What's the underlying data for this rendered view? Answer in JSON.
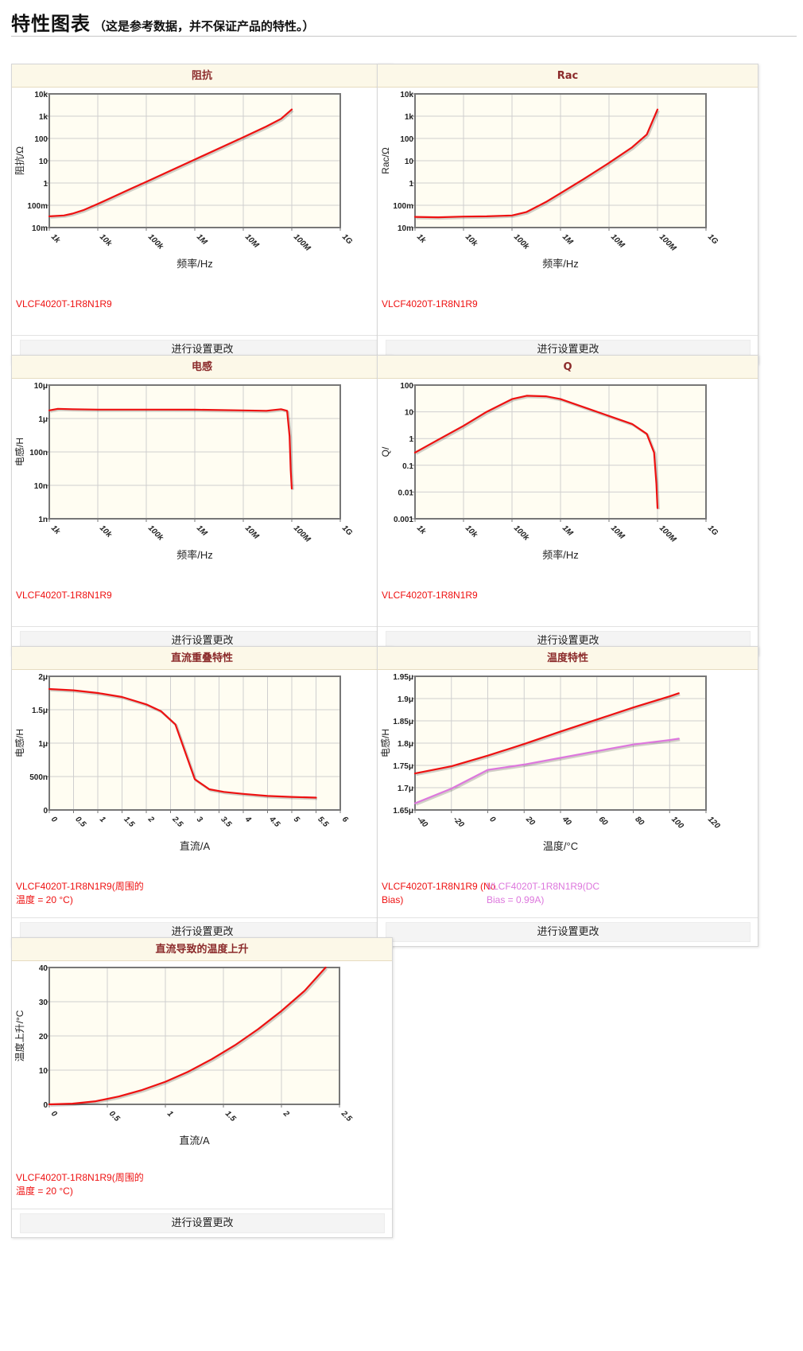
{
  "page": {
    "title": "特性图表",
    "subtitle": "（这是参考数据，并不保证产品的特性。）"
  },
  "charts": [
    {
      "title": "阻抗",
      "button_label": "进行设置更改",
      "legend": [
        {
          "label": "VLCF4020T-1R8N1R9",
          "color": "#ee1111"
        }
      ],
      "chart_data": {
        "type": "line",
        "title": "阻抗",
        "xlabel": "频率/Hz",
        "ylabel": "阻抗/Ω",
        "x_scale": "log",
        "y_scale": "log",
        "xlim": [
          1000,
          1000000000
        ],
        "ylim": [
          0.01,
          10000
        ],
        "x_ticks": [
          {
            "v": 1000,
            "l": "1k"
          },
          {
            "v": 10000,
            "l": "10k"
          },
          {
            "v": 100000,
            "l": "100k"
          },
          {
            "v": 1000000,
            "l": "1M"
          },
          {
            "v": 10000000,
            "l": "10M"
          },
          {
            "v": 100000000,
            "l": "100M"
          },
          {
            "v": 1000000000,
            "l": "1G"
          }
        ],
        "y_ticks": [
          {
            "v": 0.01,
            "l": "10m"
          },
          {
            "v": 0.1,
            "l": "100m"
          },
          {
            "v": 1,
            "l": "1"
          },
          {
            "v": 10,
            "l": "10"
          },
          {
            "v": 100,
            "l": "100"
          },
          {
            "v": 1000,
            "l": "1k"
          },
          {
            "v": 10000,
            "l": "10k"
          }
        ],
        "series": [
          {
            "name": "VLCF4020T-1R8N1R9",
            "color": "#ee1111",
            "x": [
              1000,
              2000,
              3000,
              5000,
              10000,
              20000,
              50000,
              100000,
              300000,
              1000000,
              3000000,
              10000000,
              30000000,
              60000000,
              100000000
            ],
            "y": [
              0.032,
              0.035,
              0.042,
              0.06,
              0.115,
              0.23,
              0.57,
              1.13,
              3.4,
              11.3,
              34,
              113,
              345,
              760,
              2000
            ]
          }
        ]
      }
    },
    {
      "title": "Rac",
      "button_label": "进行设置更改",
      "legend": [
        {
          "label": "VLCF4020T-1R8N1R9",
          "color": "#ee1111"
        }
      ],
      "chart_data": {
        "type": "line",
        "title": "Rac",
        "xlabel": "频率/Hz",
        "ylabel": "Rac/Ω",
        "x_scale": "log",
        "y_scale": "log",
        "xlim": [
          1000,
          1000000000
        ],
        "ylim": [
          0.01,
          10000
        ],
        "x_ticks": [
          {
            "v": 1000,
            "l": "1k"
          },
          {
            "v": 10000,
            "l": "10k"
          },
          {
            "v": 100000,
            "l": "100k"
          },
          {
            "v": 1000000,
            "l": "1M"
          },
          {
            "v": 10000000,
            "l": "10M"
          },
          {
            "v": 100000000,
            "l": "100M"
          },
          {
            "v": 1000000000,
            "l": "1G"
          }
        ],
        "y_ticks": [
          {
            "v": 0.01,
            "l": "10m"
          },
          {
            "v": 0.1,
            "l": "100m"
          },
          {
            "v": 1,
            "l": "1"
          },
          {
            "v": 10,
            "l": "10"
          },
          {
            "v": 100,
            "l": "100"
          },
          {
            "v": 1000,
            "l": "1k"
          },
          {
            "v": 10000,
            "l": "10k"
          }
        ],
        "series": [
          {
            "name": "VLCF4020T-1R8N1R9",
            "color": "#ee1111",
            "x": [
              1000,
              3000,
              10000,
              30000,
              100000,
              200000,
              500000,
              1000000,
              3000000,
              10000000,
              30000000,
              60000000,
              100000000
            ],
            "y": [
              0.03,
              0.029,
              0.031,
              0.032,
              0.035,
              0.05,
              0.14,
              0.35,
              1.5,
              8,
              40,
              150,
              2000
            ]
          }
        ]
      }
    },
    {
      "title": "电感",
      "button_label": "进行设置更改",
      "legend": [
        {
          "label": "VLCF4020T-1R8N1R9",
          "color": "#ee1111"
        }
      ],
      "chart_data": {
        "type": "line",
        "title": "电感",
        "xlabel": "频率/Hz",
        "ylabel": "电感/H",
        "x_scale": "log",
        "y_scale": "log",
        "xlim": [
          1000,
          1000000000
        ],
        "ylim": [
          1e-09,
          1e-05
        ],
        "x_ticks": [
          {
            "v": 1000,
            "l": "1k"
          },
          {
            "v": 10000,
            "l": "10k"
          },
          {
            "v": 100000,
            "l": "100k"
          },
          {
            "v": 1000000,
            "l": "1M"
          },
          {
            "v": 10000000,
            "l": "10M"
          },
          {
            "v": 100000000,
            "l": "100M"
          },
          {
            "v": 1000000000,
            "l": "1G"
          }
        ],
        "y_ticks": [
          {
            "v": 1e-09,
            "l": "1n"
          },
          {
            "v": 1e-08,
            "l": "10n"
          },
          {
            "v": 1e-07,
            "l": "100n"
          },
          {
            "v": 1e-06,
            "l": "1μ"
          },
          {
            "v": 1e-05,
            "l": "10μ"
          }
        ],
        "series": [
          {
            "name": "VLCF4020T-1R8N1R9",
            "color": "#ee1111",
            "x": [
              1000,
              1500,
              3000,
              10000,
              100000,
              1000000,
              10000000,
              30000000,
              60000000,
              80000000,
              90000000,
              95000000,
              100000000
            ],
            "y": [
              1.75e-06,
              1.95e-06,
              1.9e-06,
              1.85e-06,
              1.85e-06,
              1.84e-06,
              1.75e-06,
              1.7e-06,
              1.9e-06,
              1.7e-06,
              3e-07,
              3e-08,
              8e-09
            ]
          }
        ]
      }
    },
    {
      "title": "Q",
      "button_label": "进行设置更改",
      "legend": [
        {
          "label": "VLCF4020T-1R8N1R9",
          "color": "#ee1111"
        }
      ],
      "chart_data": {
        "type": "line",
        "title": "Q",
        "xlabel": "频率/Hz",
        "ylabel": "Q/",
        "x_scale": "log",
        "y_scale": "log",
        "xlim": [
          1000,
          1000000000
        ],
        "ylim": [
          0.001,
          100
        ],
        "x_ticks": [
          {
            "v": 1000,
            "l": "1k"
          },
          {
            "v": 10000,
            "l": "10k"
          },
          {
            "v": 100000,
            "l": "100k"
          },
          {
            "v": 1000000,
            "l": "1M"
          },
          {
            "v": 10000000,
            "l": "10M"
          },
          {
            "v": 100000000,
            "l": "100M"
          },
          {
            "v": 1000000000,
            "l": "1G"
          }
        ],
        "y_ticks": [
          {
            "v": 0.001,
            "l": "0.001"
          },
          {
            "v": 0.01,
            "l": "0.01"
          },
          {
            "v": 0.1,
            "l": "0.1"
          },
          {
            "v": 1,
            "l": "1"
          },
          {
            "v": 10,
            "l": "10"
          },
          {
            "v": 100,
            "l": "100"
          }
        ],
        "series": [
          {
            "name": "VLCF4020T-1R8N1R9",
            "color": "#ee1111",
            "x": [
              1000,
              3000,
              10000,
              30000,
              100000,
              200000,
              500000,
              1000000,
              3000000,
              10000000,
              30000000,
              60000000,
              85000000,
              95000000,
              100000000
            ],
            "y": [
              0.3,
              0.9,
              3,
              10,
              30,
              40,
              38,
              30,
              15,
              7,
              3.5,
              1.5,
              0.3,
              0.02,
              0.0025
            ]
          }
        ]
      }
    },
    {
      "title": "直流重叠特性",
      "button_label": "进行设置更改",
      "legend": [
        {
          "label": "VLCF4020T-1R8N1R9(周围的温度 = 20 °C)",
          "color": "#ee1111"
        }
      ],
      "chart_data": {
        "type": "line",
        "title": "直流重叠特性",
        "xlabel": "直流/A",
        "ylabel": "电感/H",
        "x_scale": "linear",
        "y_scale": "linear",
        "xlim": [
          0,
          6
        ],
        "ylim": [
          0,
          2e-06
        ],
        "x_ticks": [
          {
            "v": 0,
            "l": "0"
          },
          {
            "v": 0.5,
            "l": "0.5"
          },
          {
            "v": 1,
            "l": "1"
          },
          {
            "v": 1.5,
            "l": "1.5"
          },
          {
            "v": 2,
            "l": "2"
          },
          {
            "v": 2.5,
            "l": "2.5"
          },
          {
            "v": 3,
            "l": "3"
          },
          {
            "v": 3.5,
            "l": "3.5"
          },
          {
            "v": 4,
            "l": "4"
          },
          {
            "v": 4.5,
            "l": "4.5"
          },
          {
            "v": 5,
            "l": "5"
          },
          {
            "v": 5.5,
            "l": "5.5"
          },
          {
            "v": 6,
            "l": "6"
          }
        ],
        "y_ticks": [
          {
            "v": 0,
            "l": "0"
          },
          {
            "v": 5e-07,
            "l": "500n"
          },
          {
            "v": 1e-06,
            "l": "1μ"
          },
          {
            "v": 1.5e-06,
            "l": "1.5μ"
          },
          {
            "v": 2e-06,
            "l": "2μ"
          }
        ],
        "series": [
          {
            "name": "VLCF4020T-1R8N1R9(周围的温度 = 20 °C)",
            "color": "#ee1111",
            "x": [
              0,
              0.5,
              1,
              1.5,
              2,
              2.3,
              2.6,
              3.0,
              3.3,
              3.6,
              4,
              4.5,
              5,
              5.5
            ],
            "y": [
              1.81e-06,
              1.79e-06,
              1.75e-06,
              1.69e-06,
              1.58e-06,
              1.48e-06,
              1.28e-06,
              4.6e-07,
              3.1e-07,
              2.7e-07,
              2.4e-07,
              2.1e-07,
              1.95e-07,
              1.85e-07
            ]
          }
        ]
      }
    },
    {
      "title": "温度特性",
      "button_label": "进行设置更改",
      "legend": [
        {
          "label": "VLCF4020T-1R8N1R9 (No Bias)",
          "color": "#ee1111"
        },
        {
          "label": "VLCF4020T-1R8N1R9(DC Bias = 0.99A)",
          "color": "#dd77dd"
        }
      ],
      "chart_data": {
        "type": "line",
        "title": "温度特性",
        "xlabel": "温度/°C",
        "ylabel": "电感/H",
        "x_scale": "linear",
        "y_scale": "linear",
        "xlim": [
          -40,
          120
        ],
        "ylim": [
          1.65e-06,
          1.95e-06
        ],
        "x_ticks": [
          {
            "v": -40,
            "l": "-40"
          },
          {
            "v": -20,
            "l": "-20"
          },
          {
            "v": 0,
            "l": "0"
          },
          {
            "v": 20,
            "l": "20"
          },
          {
            "v": 40,
            "l": "40"
          },
          {
            "v": 60,
            "l": "60"
          },
          {
            "v": 80,
            "l": "80"
          },
          {
            "v": 100,
            "l": "100"
          },
          {
            "v": 120,
            "l": "120"
          }
        ],
        "y_ticks": [
          {
            "v": 1.65e-06,
            "l": "1.65μ"
          },
          {
            "v": 1.7e-06,
            "l": "1.7μ"
          },
          {
            "v": 1.75e-06,
            "l": "1.75μ"
          },
          {
            "v": 1.8e-06,
            "l": "1.8μ"
          },
          {
            "v": 1.85e-06,
            "l": "1.85μ"
          },
          {
            "v": 1.9e-06,
            "l": "1.9μ"
          },
          {
            "v": 1.95e-06,
            "l": "1.95μ"
          }
        ],
        "series": [
          {
            "name": "VLCF4020T-1R8N1R9 (No Bias)",
            "color": "#ee1111",
            "x": [
              -40,
              -20,
              0,
              20,
              40,
              60,
              80,
              100,
              105
            ],
            "y": [
              1.732e-06,
              1.748e-06,
              1.772e-06,
              1.798e-06,
              1.826e-06,
              1.853e-06,
              1.88e-06,
              1.905e-06,
              1.912e-06
            ]
          },
          {
            "name": "VLCF4020T-1R8N1R9(DC Bias = 0.99A)",
            "color": "#dd77dd",
            "x": [
              -40,
              -20,
              0,
              20,
              40,
              60,
              80,
              100,
              105
            ],
            "y": [
              1.665e-06,
              1.698e-06,
              1.74e-06,
              1.752e-06,
              1.767e-06,
              1.782e-06,
              1.797e-06,
              1.807e-06,
              1.81e-06
            ]
          }
        ]
      }
    },
    {
      "title": "直流导致的温度上升",
      "button_label": "进行设置更改",
      "legend": [
        {
          "label": "VLCF4020T-1R8N1R9(周围的温度 = 20 °C)",
          "color": "#ee1111"
        }
      ],
      "chart_data": {
        "type": "line",
        "title": "直流导致的温度上升",
        "xlabel": "直流/A",
        "ylabel": "温度上升/°C",
        "x_scale": "linear",
        "y_scale": "linear",
        "xlim": [
          0,
          2.5
        ],
        "ylim": [
          0,
          40
        ],
        "x_ticks": [
          {
            "v": 0,
            "l": "0"
          },
          {
            "v": 0.5,
            "l": "0.5"
          },
          {
            "v": 1,
            "l": "1"
          },
          {
            "v": 1.5,
            "l": "1.5"
          },
          {
            "v": 2,
            "l": "2"
          },
          {
            "v": 2.5,
            "l": "2.5"
          }
        ],
        "y_ticks": [
          {
            "v": 0,
            "l": "0"
          },
          {
            "v": 10,
            "l": "10"
          },
          {
            "v": 20,
            "l": "20"
          },
          {
            "v": 30,
            "l": "30"
          },
          {
            "v": 40,
            "l": "40"
          }
        ],
        "series": [
          {
            "name": "VLCF4020T-1R8N1R9(周围的温度 = 20 °C)",
            "color": "#ee1111",
            "x": [
              0,
              0.2,
              0.4,
              0.6,
              0.8,
              1.0,
              1.2,
              1.4,
              1.6,
              1.8,
              2.0,
              2.2,
              2.38
            ],
            "y": [
              0,
              0.2,
              0.9,
              2.3,
              4.2,
              6.6,
              9.6,
              13.2,
              17.3,
              22,
              27.3,
              33.2,
              40
            ]
          }
        ]
      }
    }
  ]
}
